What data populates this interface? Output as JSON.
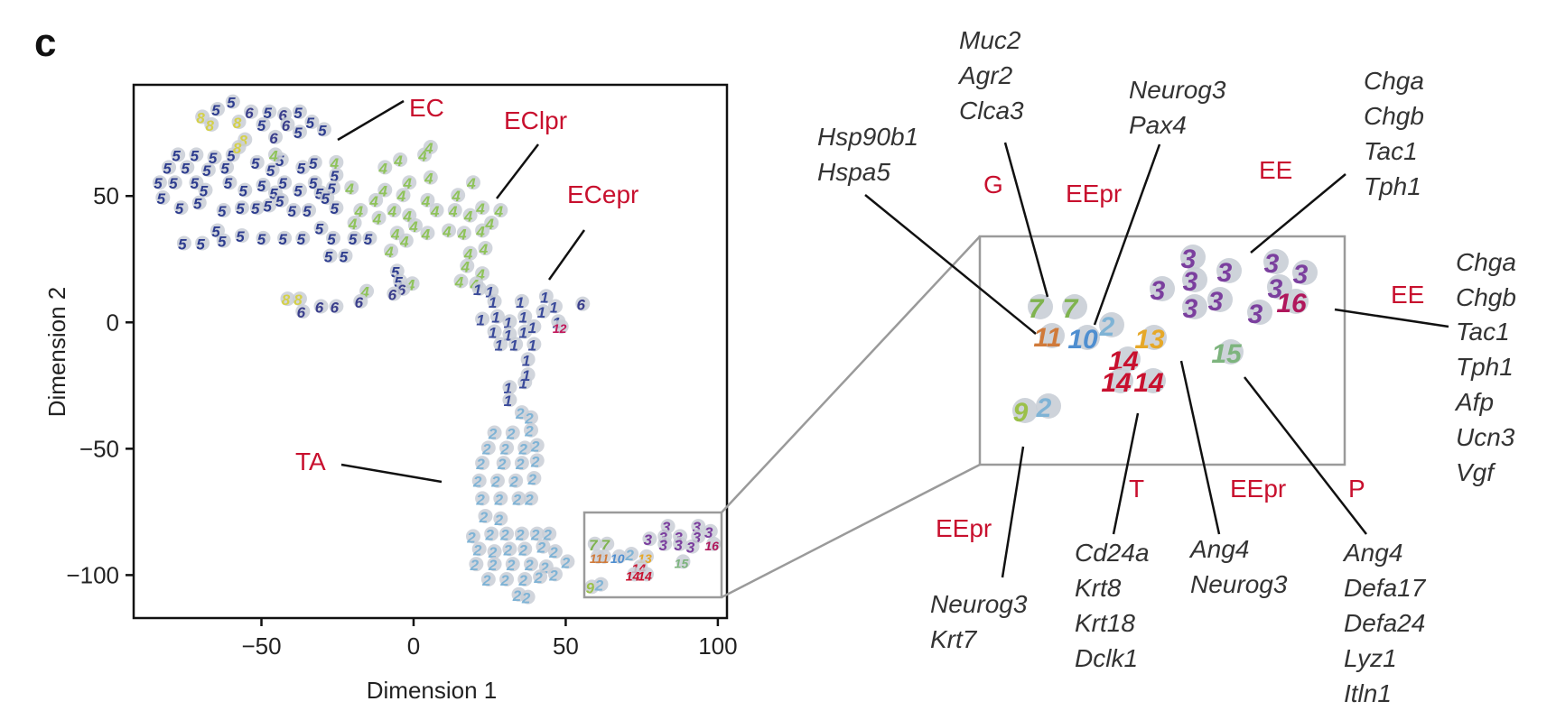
{
  "panel_letter": "c",
  "colors": {
    "annotation_red": "#c8102e",
    "gene_text": "#333333",
    "point_halo": "#c9ced6",
    "zoom_box": "#9a9a9a",
    "frame": "#111111"
  },
  "chart_data": {
    "type": "scatter",
    "xlabel": "Dimension 1",
    "ylabel": "Dimension 2",
    "xlim": [
      -92,
      103
    ],
    "ylim": [
      -117,
      94
    ],
    "xticks": [
      -50,
      0,
      50,
      100
    ],
    "yticks": [
      50,
      0,
      -50,
      -100
    ],
    "xtick_labels": [
      "−50",
      "0",
      "50",
      "100"
    ],
    "ytick_labels": [
      "50",
      "0",
      "−50",
      "−100"
    ],
    "grid": false,
    "cluster_colors": {
      "1": "#3a4a9a",
      "2": "#7fb3d5",
      "3": "#7b3f9e",
      "4": "#8fc35a",
      "5": "#2e3d8f",
      "6": "#3b3f8c",
      "7": "#7fb34f",
      "8": "#d4d04a",
      "9": "#9bc04a",
      "10": "#4e8ed0",
      "11": "#d07a3a",
      "12": "#c2185b",
      "13": "#e6a828",
      "14": "#c8102e",
      "15": "#7db47d",
      "16": "#b0175c"
    },
    "points": [
      {
        "c": "5",
        "x": -60,
        "y": 87
      },
      {
        "c": "5",
        "x": -65,
        "y": 84
      },
      {
        "c": "6",
        "x": -54,
        "y": 83
      },
      {
        "c": "5",
        "x": -48,
        "y": 83
      },
      {
        "c": "6",
        "x": -43,
        "y": 82
      },
      {
        "c": "5",
        "x": -38,
        "y": 83
      },
      {
        "c": "5",
        "x": -34,
        "y": 79
      },
      {
        "c": "6",
        "x": -42,
        "y": 78
      },
      {
        "c": "5",
        "x": -50,
        "y": 78
      },
      {
        "c": "5",
        "x": -38,
        "y": 75
      },
      {
        "c": "5",
        "x": -30,
        "y": 76
      },
      {
        "c": "6",
        "x": -46,
        "y": 73
      },
      {
        "c": "5",
        "x": -78,
        "y": 66
      },
      {
        "c": "5",
        "x": -81,
        "y": 61
      },
      {
        "c": "5",
        "x": -72,
        "y": 66
      },
      {
        "c": "5",
        "x": -75,
        "y": 61
      },
      {
        "c": "5",
        "x": -66,
        "y": 65
      },
      {
        "c": "5",
        "x": -68,
        "y": 60
      },
      {
        "c": "5",
        "x": -62,
        "y": 61
      },
      {
        "c": "5",
        "x": -60,
        "y": 66
      },
      {
        "c": "5",
        "x": -52,
        "y": 63
      },
      {
        "c": "5",
        "x": -47,
        "y": 60
      },
      {
        "c": "5",
        "x": -44,
        "y": 64
      },
      {
        "c": "5",
        "x": -37,
        "y": 61
      },
      {
        "c": "5",
        "x": -33,
        "y": 63
      },
      {
        "c": "5",
        "x": -26,
        "y": 58
      },
      {
        "c": "5",
        "x": -33,
        "y": 55
      },
      {
        "c": "5",
        "x": -84,
        "y": 55
      },
      {
        "c": "5",
        "x": -79,
        "y": 55
      },
      {
        "c": "5",
        "x": -72,
        "y": 55
      },
      {
        "c": "5",
        "x": -69,
        "y": 52
      },
      {
        "c": "5",
        "x": -61,
        "y": 55
      },
      {
        "c": "5",
        "x": -56,
        "y": 52
      },
      {
        "c": "5",
        "x": -50,
        "y": 54
      },
      {
        "c": "5",
        "x": -46,
        "y": 51
      },
      {
        "c": "5",
        "x": -43,
        "y": 55
      },
      {
        "c": "5",
        "x": -38,
        "y": 52
      },
      {
        "c": "5",
        "x": -31,
        "y": 51
      },
      {
        "c": "5",
        "x": -27,
        "y": 53
      },
      {
        "c": "5",
        "x": -83,
        "y": 49
      },
      {
        "c": "5",
        "x": -77,
        "y": 45
      },
      {
        "c": "5",
        "x": -71,
        "y": 47
      },
      {
        "c": "5",
        "x": -63,
        "y": 44
      },
      {
        "c": "5",
        "x": -57,
        "y": 45
      },
      {
        "c": "5",
        "x": -52,
        "y": 45
      },
      {
        "c": "5",
        "x": -48,
        "y": 46
      },
      {
        "c": "5",
        "x": -44,
        "y": 48
      },
      {
        "c": "5",
        "x": -40,
        "y": 44
      },
      {
        "c": "5",
        "x": -35,
        "y": 44
      },
      {
        "c": "5",
        "x": -26,
        "y": 45
      },
      {
        "c": "5",
        "x": -29,
        "y": 49
      },
      {
        "c": "5",
        "x": -76,
        "y": 31
      },
      {
        "c": "5",
        "x": -70,
        "y": 31
      },
      {
        "c": "5",
        "x": -65,
        "y": 36
      },
      {
        "c": "5",
        "x": -63,
        "y": 32
      },
      {
        "c": "5",
        "x": -57,
        "y": 34
      },
      {
        "c": "5",
        "x": -50,
        "y": 33
      },
      {
        "c": "5",
        "x": -43,
        "y": 33
      },
      {
        "c": "5",
        "x": -37,
        "y": 33
      },
      {
        "c": "5",
        "x": -31,
        "y": 37
      },
      {
        "c": "5",
        "x": -27,
        "y": 33
      },
      {
        "c": "5",
        "x": -20,
        "y": 33
      },
      {
        "c": "5",
        "x": -15,
        "y": 33
      },
      {
        "c": "5",
        "x": -28,
        "y": 26
      },
      {
        "c": "5",
        "x": -23,
        "y": 26
      },
      {
        "c": "8",
        "x": -70,
        "y": 81
      },
      {
        "c": "8",
        "x": -67,
        "y": 78
      },
      {
        "c": "8",
        "x": -58,
        "y": 79
      },
      {
        "c": "8",
        "x": -56,
        "y": 72
      },
      {
        "c": "8",
        "x": -58,
        "y": 69
      },
      {
        "c": "4",
        "x": -46,
        "y": 66
      },
      {
        "c": "8",
        "x": -42,
        "y": 9
      },
      {
        "c": "8",
        "x": -38,
        "y": 9
      },
      {
        "c": "4",
        "x": -5,
        "y": 64
      },
      {
        "c": "4",
        "x": 3,
        "y": 66
      },
      {
        "c": "4",
        "x": 5,
        "y": 69
      },
      {
        "c": "4",
        "x": -10,
        "y": 61
      },
      {
        "c": "4",
        "x": -2,
        "y": 55
      },
      {
        "c": "4",
        "x": 5,
        "y": 57
      },
      {
        "c": "4",
        "x": -10,
        "y": 52
      },
      {
        "c": "4",
        "x": -21,
        "y": 53
      },
      {
        "c": "4",
        "x": -26,
        "y": 63
      },
      {
        "c": "4",
        "x": -13,
        "y": 48
      },
      {
        "c": "4",
        "x": -4,
        "y": 50
      },
      {
        "c": "4",
        "x": 4,
        "y": 48
      },
      {
        "c": "4",
        "x": 14,
        "y": 50
      },
      {
        "c": "4",
        "x": 19,
        "y": 55
      },
      {
        "c": "4",
        "x": -18,
        "y": 44
      },
      {
        "c": "4",
        "x": -12,
        "y": 41
      },
      {
        "c": "4",
        "x": -7,
        "y": 44
      },
      {
        "c": "4",
        "x": -2,
        "y": 42
      },
      {
        "c": "4",
        "x": 7,
        "y": 44
      },
      {
        "c": "4",
        "x": 13,
        "y": 44
      },
      {
        "c": "4",
        "x": 18,
        "y": 42
      },
      {
        "c": "4",
        "x": 22,
        "y": 45
      },
      {
        "c": "4",
        "x": 28,
        "y": 44
      },
      {
        "c": "4",
        "x": -20,
        "y": 39
      },
      {
        "c": "4",
        "x": -6,
        "y": 35
      },
      {
        "c": "4",
        "x": 0,
        "y": 38
      },
      {
        "c": "4",
        "x": -3,
        "y": 32
      },
      {
        "c": "4",
        "x": -8,
        "y": 28
      },
      {
        "c": "4",
        "x": 4,
        "y": 35
      },
      {
        "c": "4",
        "x": 11,
        "y": 36
      },
      {
        "c": "4",
        "x": 16,
        "y": 35
      },
      {
        "c": "4",
        "x": 22,
        "y": 36
      },
      {
        "c": "4",
        "x": 25,
        "y": 39
      },
      {
        "c": "4",
        "x": 18,
        "y": 27
      },
      {
        "c": "4",
        "x": 23,
        "y": 29
      },
      {
        "c": "4",
        "x": 17,
        "y": 22
      },
      {
        "c": "4",
        "x": 22,
        "y": 19
      },
      {
        "c": "4",
        "x": 15,
        "y": 16
      },
      {
        "c": "4",
        "x": 20,
        "y": 15
      },
      {
        "c": "4",
        "x": -16,
        "y": 12
      },
      {
        "c": "4",
        "x": -1,
        "y": 15
      },
      {
        "c": "5",
        "x": -6,
        "y": 20
      },
      {
        "c": "5",
        "x": -5,
        "y": 16
      },
      {
        "c": "6",
        "x": -4,
        "y": 13
      },
      {
        "c": "6",
        "x": -7,
        "y": 11
      },
      {
        "c": "6",
        "x": -18,
        "y": 8
      },
      {
        "c": "6",
        "x": -26,
        "y": 6
      },
      {
        "c": "6",
        "x": -31,
        "y": 6
      },
      {
        "c": "6",
        "x": -37,
        "y": 4
      },
      {
        "c": "1",
        "x": 21,
        "y": 13
      },
      {
        "c": "1",
        "x": 25,
        "y": 12
      },
      {
        "c": "1",
        "x": 26,
        "y": 8
      },
      {
        "c": "1",
        "x": 35,
        "y": 8
      },
      {
        "c": "1",
        "x": 43,
        "y": 10
      },
      {
        "c": "1",
        "x": 46,
        "y": 6
      },
      {
        "c": "1",
        "x": 22,
        "y": 1
      },
      {
        "c": "1",
        "x": 27,
        "y": 2
      },
      {
        "c": "1",
        "x": 31,
        "y": 0
      },
      {
        "c": "1",
        "x": 36,
        "y": 2
      },
      {
        "c": "1",
        "x": 42,
        "y": 4
      },
      {
        "c": "1",
        "x": 47,
        "y": 0
      },
      {
        "c": "12",
        "x": 48,
        "y": -2
      },
      {
        "c": "6",
        "x": 55,
        "y": 7
      },
      {
        "c": "1",
        "x": 26,
        "y": -4
      },
      {
        "c": "1",
        "x": 31,
        "y": -5
      },
      {
        "c": "1",
        "x": 36,
        "y": -4
      },
      {
        "c": "1",
        "x": 39,
        "y": -2
      },
      {
        "c": "1",
        "x": 28,
        "y": -9
      },
      {
        "c": "1",
        "x": 33,
        "y": -9
      },
      {
        "c": "1",
        "x": 39,
        "y": -9
      },
      {
        "c": "1",
        "x": 37,
        "y": -15
      },
      {
        "c": "1",
        "x": 31,
        "y": -26
      },
      {
        "c": "1",
        "x": 31,
        "y": -31
      },
      {
        "c": "1",
        "x": 36,
        "y": -24
      },
      {
        "c": "1",
        "x": 37,
        "y": -21
      },
      {
        "c": "2",
        "x": 35,
        "y": -36
      },
      {
        "c": "2",
        "x": 38,
        "y": -38
      },
      {
        "c": "2",
        "x": 26,
        "y": -44
      },
      {
        "c": "2",
        "x": 32,
        "y": -44
      },
      {
        "c": "2",
        "x": 38,
        "y": -43
      },
      {
        "c": "2",
        "x": 24,
        "y": -50
      },
      {
        "c": "2",
        "x": 30,
        "y": -50
      },
      {
        "c": "2",
        "x": 36,
        "y": -50
      },
      {
        "c": "2",
        "x": 40,
        "y": -49
      },
      {
        "c": "2",
        "x": 22,
        "y": -56
      },
      {
        "c": "2",
        "x": 29,
        "y": -56
      },
      {
        "c": "2",
        "x": 35,
        "y": -56
      },
      {
        "c": "2",
        "x": 40,
        "y": -55
      },
      {
        "c": "2",
        "x": 21,
        "y": -63
      },
      {
        "c": "2",
        "x": 27,
        "y": -63
      },
      {
        "c": "2",
        "x": 33,
        "y": -63
      },
      {
        "c": "2",
        "x": 39,
        "y": -62
      },
      {
        "c": "2",
        "x": 22,
        "y": -70
      },
      {
        "c": "2",
        "x": 28,
        "y": -70
      },
      {
        "c": "2",
        "x": 34,
        "y": -70
      },
      {
        "c": "2",
        "x": 38,
        "y": -70
      },
      {
        "c": "2",
        "x": 23,
        "y": -77
      },
      {
        "c": "2",
        "x": 28,
        "y": -78
      },
      {
        "c": "2",
        "x": 19,
        "y": -85
      },
      {
        "c": "2",
        "x": 25,
        "y": -84
      },
      {
        "c": "2",
        "x": 30,
        "y": -84
      },
      {
        "c": "2",
        "x": 35,
        "y": -84
      },
      {
        "c": "2",
        "x": 40,
        "y": -84
      },
      {
        "c": "2",
        "x": 44,
        "y": -84
      },
      {
        "c": "2",
        "x": 21,
        "y": -90
      },
      {
        "c": "2",
        "x": 26,
        "y": -91
      },
      {
        "c": "2",
        "x": 31,
        "y": -90
      },
      {
        "c": "2",
        "x": 36,
        "y": -90
      },
      {
        "c": "2",
        "x": 42,
        "y": -89
      },
      {
        "c": "2",
        "x": 46,
        "y": -91
      },
      {
        "c": "2",
        "x": 20,
        "y": -96
      },
      {
        "c": "2",
        "x": 26,
        "y": -96
      },
      {
        "c": "2",
        "x": 32,
        "y": -96
      },
      {
        "c": "2",
        "x": 38,
        "y": -96
      },
      {
        "c": "2",
        "x": 43,
        "y": -97
      },
      {
        "c": "2",
        "x": 50,
        "y": -95
      },
      {
        "c": "2",
        "x": 24,
        "y": -102
      },
      {
        "c": "2",
        "x": 30,
        "y": -102
      },
      {
        "c": "2",
        "x": 36,
        "y": -102
      },
      {
        "c": "2",
        "x": 41,
        "y": -101
      },
      {
        "c": "2",
        "x": 46,
        "y": -100
      },
      {
        "c": "2",
        "x": 34,
        "y": -108
      },
      {
        "c": "2",
        "x": 37,
        "y": -109
      },
      {
        "c": "7",
        "x": 59,
        "y": -88
      },
      {
        "c": "7",
        "x": 63,
        "y": -88
      },
      {
        "c": "11",
        "x": 62,
        "y": -93
      },
      {
        "c": "11",
        "x": 60,
        "y": -93
      },
      {
        "c": "10",
        "x": 67,
        "y": -93
      },
      {
        "c": "2",
        "x": 71,
        "y": -92
      },
      {
        "c": "13",
        "x": 76,
        "y": -93
      },
      {
        "c": "14",
        "x": 74,
        "y": -97
      },
      {
        "c": "14",
        "x": 72,
        "y": -100
      },
      {
        "c": "14",
        "x": 76,
        "y": -100
      },
      {
        "c": "9",
        "x": 58,
        "y": -105
      },
      {
        "c": "2",
        "x": 61,
        "y": -104
      },
      {
        "c": "15",
        "x": 88,
        "y": -95
      },
      {
        "c": "3",
        "x": 83,
        "y": -81
      },
      {
        "c": "3",
        "x": 82,
        "y": -85
      },
      {
        "c": "3",
        "x": 82,
        "y": -88
      },
      {
        "c": "3",
        "x": 87,
        "y": -85
      },
      {
        "c": "3",
        "x": 87,
        "y": -88
      },
      {
        "c": "3",
        "x": 77,
        "y": -86
      },
      {
        "c": "3",
        "x": 93,
        "y": -81
      },
      {
        "c": "3",
        "x": 93,
        "y": -85
      },
      {
        "c": "3",
        "x": 97,
        "y": -83
      },
      {
        "c": "3",
        "x": 91,
        "y": -89
      },
      {
        "c": "16",
        "x": 98,
        "y": -88
      }
    ]
  },
  "inset_points": [
    {
      "c": "7",
      "t": "7"
    },
    {
      "c": "7",
      "t": "7"
    },
    {
      "c": "11",
      "t": "11"
    },
    {
      "c": "10",
      "t": "10"
    },
    {
      "c": "2",
      "t": "2"
    },
    {
      "c": "13",
      "t": "13"
    },
    {
      "c": "14",
      "t": "14"
    },
    {
      "c": "14",
      "t": "14"
    },
    {
      "c": "14",
      "t": "14"
    },
    {
      "c": "15",
      "t": "15"
    },
    {
      "c": "9",
      "t": "9"
    },
    {
      "c": "2",
      "t": "2"
    },
    {
      "c": "3",
      "t": "3"
    },
    {
      "c": "3",
      "t": "3"
    },
    {
      "c": "3",
      "t": "3"
    },
    {
      "c": "3",
      "t": "3"
    },
    {
      "c": "3",
      "t": "3"
    },
    {
      "c": "3",
      "t": "3"
    },
    {
      "c": "3",
      "t": "3"
    },
    {
      "c": "3",
      "t": "3"
    },
    {
      "c": "3",
      "t": "3"
    },
    {
      "c": "3",
      "t": "3"
    },
    {
      "c": "16",
      "t": "16"
    }
  ],
  "main_annotations": {
    "ec": "EC",
    "eclpr": "EClpr",
    "ecepr": "ECepr",
    "ta": "TA"
  },
  "inset_annotations": {
    "g": "G",
    "eepr_top": "EEpr",
    "ee_top": "EE",
    "ee_right": "EE",
    "eepr_left": "EEpr",
    "t": "T",
    "eepr_bottom": "EEpr",
    "p": "P"
  },
  "gene_lists": {
    "hsp": [
      "Hsp90b1",
      "Hspa5"
    ],
    "muc": [
      "Muc2",
      "Agr2",
      "Clca3"
    ],
    "neurog_pax": [
      "Neurog3",
      "Pax4"
    ],
    "chga_top": [
      "Chga",
      "Chgb",
      "Tac1",
      "Tph1"
    ],
    "chga_right": [
      "Chga",
      "Chgb",
      "Tac1",
      "Tph1",
      "Afp",
      "Ucn3",
      "Vgf"
    ],
    "neurog_krt7": [
      "Neurog3",
      "Krt7"
    ],
    "cd24a": [
      "Cd24a",
      "Krt8",
      "Krt18",
      "Dclk1"
    ],
    "ang4_neurog": [
      "Ang4",
      "Neurog3"
    ],
    "ang4_defa": [
      "Ang4",
      "Defa17",
      "Defa24",
      "Lyz1",
      "Itln1"
    ]
  }
}
